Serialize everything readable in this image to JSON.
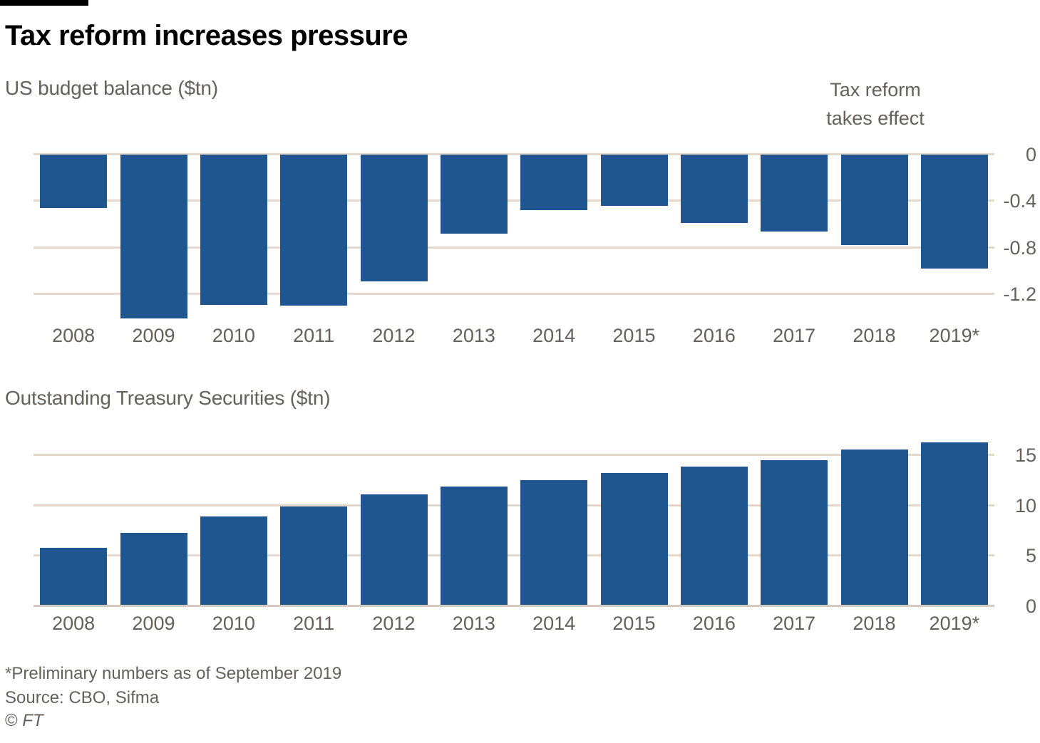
{
  "header": {
    "title": "Tax reform increases pressure"
  },
  "chart_data": [
    {
      "type": "bar",
      "title": "US budget balance ($tn)",
      "categories": [
        "2008",
        "2009",
        "2010",
        "2011",
        "2012",
        "2013",
        "2014",
        "2015",
        "2016",
        "2017",
        "2018",
        "2019*"
      ],
      "values": [
        -0.46,
        -1.41,
        -1.29,
        -1.3,
        -1.09,
        -0.68,
        -0.48,
        -0.44,
        -0.59,
        -0.66,
        -0.78,
        -0.98
      ],
      "ytick_labels": [
        "0",
        "-0.4",
        "-0.8",
        "-1.2"
      ],
      "ylim": [
        -1.45,
        0
      ],
      "xlabel": "",
      "ylabel": "US budget balance ($tn)",
      "grid": "horizontal",
      "legend": "none",
      "bar_color": "#20568f",
      "annotation": "Tax reform\ntakes effect"
    },
    {
      "type": "bar",
      "title": "Outstanding Treasury Securities ($tn)",
      "categories": [
        "2008",
        "2009",
        "2010",
        "2011",
        "2012",
        "2013",
        "2014",
        "2015",
        "2016",
        "2017",
        "2018",
        "2019*"
      ],
      "values": [
        5.8,
        7.3,
        8.9,
        9.9,
        11.1,
        11.9,
        12.5,
        13.2,
        13.9,
        14.5,
        15.6,
        16.3
      ],
      "ytick_labels": [
        "15",
        "10",
        "5",
        "0"
      ],
      "ylim": [
        0,
        16.5
      ],
      "xlabel": "",
      "ylabel": "Outstanding Treasury Securities ($tn)",
      "grid": "horizontal",
      "legend": "none",
      "bar_color": "#20568f"
    }
  ],
  "footer": {
    "footnote": "*Preliminary numbers as of September 2019",
    "source": "Source: CBO, Sifma",
    "copyright_symbol": "©",
    "copyright_brand": "FT"
  }
}
